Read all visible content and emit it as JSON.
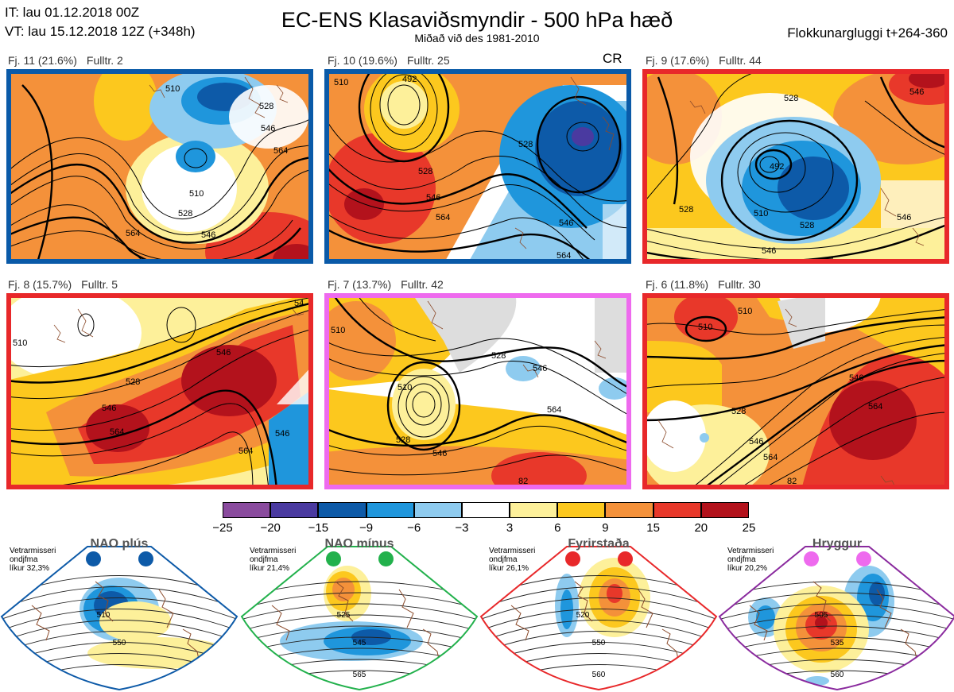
{
  "header": {
    "it": "IT: lau 01.12.2018 00Z",
    "vt": "VT: lau 15.12.2018 12Z  (+348h)",
    "title": "EC-ENS Klasaviðsmyndir - 500 hPa hæð",
    "subtitle": "Miðað við des 1981-2010",
    "window": "Flokkunargluggi t+264-360"
  },
  "panels": [
    {
      "cluster": "Fj. 11 (21.6%)",
      "members": "Fulltr. 2",
      "extra": "",
      "frame_color": "#0a5aa8",
      "contour_labels": [
        "528",
        "546",
        "564",
        "510",
        "528",
        "546",
        "564",
        "510"
      ]
    },
    {
      "cluster": "Fj. 10 (19.6%)",
      "members": "Fulltr. 25",
      "extra": "CR",
      "frame_color": "#0a5aa8",
      "contour_labels": [
        "492",
        "528",
        "528",
        "546",
        "564",
        "546",
        "564",
        "510"
      ]
    },
    {
      "cluster": "Fj. 9 (17.6%)",
      "members": "Fulltr. 44",
      "extra": "",
      "frame_color": "#e8282a",
      "contour_labels": [
        "492",
        "510",
        "528",
        "546",
        "546",
        "528",
        "528",
        "546"
      ]
    },
    {
      "cluster": "Fj. 8 (15.7%)",
      "members": "Fulltr. 5",
      "extra": "",
      "frame_color": "#e8282a",
      "contour_labels": [
        "528",
        "546",
        "564",
        "546",
        "564",
        "546",
        "54",
        "510"
      ]
    },
    {
      "cluster": "Fj. 7 (13.7%)",
      "members": "Fulltr. 42",
      "extra": "",
      "frame_color": "#ee6aee",
      "contour_labels": [
        "510",
        "528",
        "546",
        "546",
        "564",
        "528",
        "510",
        "82"
      ]
    },
    {
      "cluster": "Fj. 6 (11.8%)",
      "members": "Fulltr. 30",
      "extra": "",
      "frame_color": "#e8282a",
      "contour_labels": [
        "510",
        "510",
        "528",
        "546",
        "564",
        "564",
        "546",
        "82"
      ]
    }
  ],
  "colorbar": {
    "ticks": [
      "−25",
      "−20",
      "−15",
      "−9",
      "−6",
      "−3",
      "3",
      "6",
      "9",
      "15",
      "20",
      "25"
    ],
    "colors": [
      "#8a4b9e",
      "#4a3aa0",
      "#0d5aa8",
      "#1f96dc",
      "#8ecbef",
      "#ffffff",
      "#fdf09a",
      "#fcc81e",
      "#f4913a",
      "#e8382a",
      "#b3121c"
    ]
  },
  "regimes": [
    {
      "name": "NAO plús",
      "note": [
        "Vetrarmisseri",
        "ondjfma",
        "líkur 32,3%"
      ],
      "dot_color": "#0d5aa8",
      "border_color": "#0d5aa8",
      "labels": [
        "510",
        "550"
      ]
    },
    {
      "name": "NAO mínus",
      "note": [
        "Vetrarmisseri",
        "ondjfma",
        "líkur 21,4%"
      ],
      "dot_color": "#22b14c",
      "border_color": "#22b14c",
      "labels": [
        "525",
        "545",
        "565"
      ]
    },
    {
      "name": "Fyrirstaða",
      "note": [
        "Vetrarmisseri",
        "ondjfma",
        "líkur 26,1%"
      ],
      "dot_color": "#e8282a",
      "border_color": "#e8282a",
      "labels": [
        "520",
        "550",
        "560"
      ]
    },
    {
      "name": "Hryggur",
      "note": [
        "Vetrarmisseri",
        "ondjfma",
        "líkur 20,2%"
      ],
      "dot_color": "#ee6aee",
      "border_color": "#8a2a9e",
      "labels": [
        "505",
        "535",
        "560"
      ]
    }
  ]
}
